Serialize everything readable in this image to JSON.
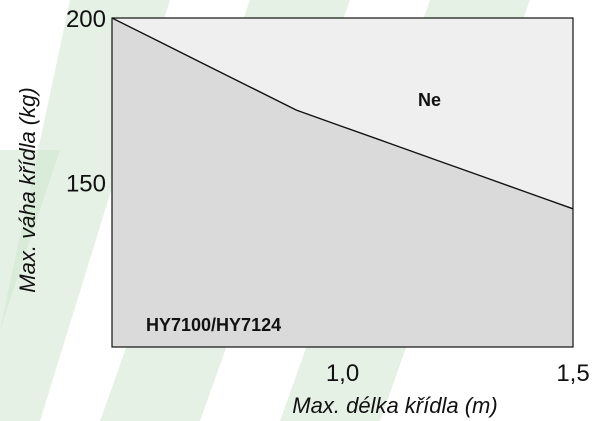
{
  "chart_data": {
    "type": "area",
    "xlabel": "Max. délka křídla (m)",
    "ylabel": "Max. váha křídla (kg)",
    "xlim": [
      0.5,
      1.5
    ],
    "ylim": [
      100,
      200
    ],
    "x_ticks": [
      {
        "value": 1.0,
        "label": "1,0"
      },
      {
        "value": 1.5,
        "label": "1,5"
      }
    ],
    "y_ticks": [
      {
        "value": 200,
        "label": "200"
      },
      {
        "value": 150,
        "label": "150"
      }
    ],
    "series": [
      {
        "name": "HY7100/HY7124",
        "x": [
          0.5,
          0.6,
          0.7,
          0.8,
          0.9,
          1.0,
          1.1,
          1.2,
          1.3,
          1.4,
          1.5
        ],
        "y": [
          200,
          193,
          186,
          179,
          172,
          167,
          162,
          157,
          152,
          147,
          142
        ]
      }
    ],
    "regions": {
      "below_label": "HY7100/HY7124",
      "above_label": "Ne"
    },
    "colors": {
      "below_fill": "#d8d8d8",
      "above_fill": "#efefef",
      "line": "#111111",
      "watermark": "#cfe6cf"
    },
    "grid": false,
    "legend": "none"
  }
}
